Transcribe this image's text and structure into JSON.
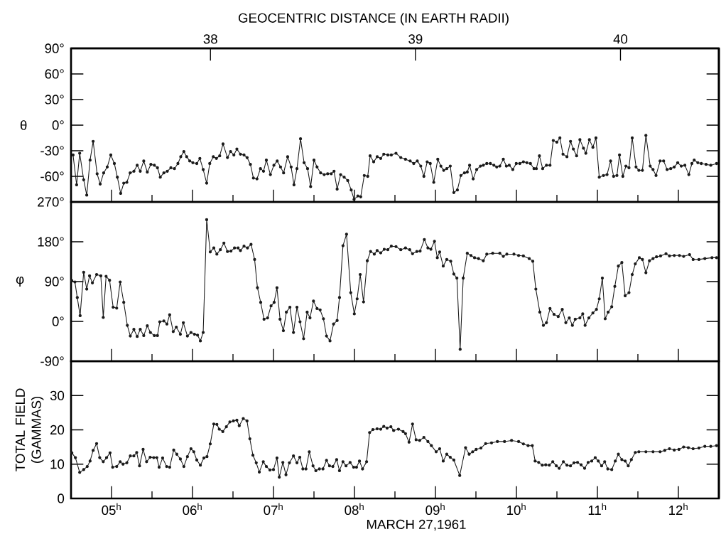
{
  "chart_data": [
    {
      "type": "line",
      "ylabel": "θ",
      "x2label": "GEOCENTRIC DISTANCE (IN EARTH RADII)",
      "xlim": [
        4.5,
        12.5
      ],
      "ylim": [
        -90,
        90
      ],
      "x2lim": [
        37.32,
        40.48
      ],
      "x2ticks": [
        38,
        39,
        40
      ],
      "tick_labels": "y",
      "marker": "circle",
      "line_style": "solid",
      "xticks": [
        {
          "value": 5,
          "label": null
        },
        {
          "value": 5.5,
          "label": null
        },
        {
          "value": 6,
          "label": null
        },
        {
          "value": 6.5,
          "label": null
        },
        {
          "value": 7,
          "label": null
        },
        {
          "value": 7.5,
          "label": null
        },
        {
          "value": 8,
          "label": null
        },
        {
          "value": 8.5,
          "label": null
        },
        {
          "value": 9,
          "label": null
        },
        {
          "value": 9.5,
          "label": null
        },
        {
          "value": 10,
          "label": null
        },
        {
          "value": 10.5,
          "label": null
        },
        {
          "value": 11,
          "label": null
        },
        {
          "value": 11.5,
          "label": null
        },
        {
          "value": 12,
          "label": null
        }
      ],
      "yticks": [
        {
          "value": 90,
          "label": "90°"
        },
        {
          "value": 60,
          "label": "60°"
        },
        {
          "value": 30,
          "label": "30°"
        },
        {
          "value": 0,
          "label": "0°"
        },
        {
          "value": -30,
          "label": "-30°"
        },
        {
          "value": -60,
          "label": "-60°"
        },
        {
          "value": -90,
          "label": null
        }
      ],
      "x": [
        4.525,
        4.569,
        4.607,
        4.656,
        4.694,
        4.735,
        4.773,
        4.822,
        4.86,
        4.903,
        4.947,
        4.991,
        5.035,
        5.072,
        5.113,
        5.151,
        5.189,
        5.23,
        5.277,
        5.317,
        5.355,
        5.398,
        5.442,
        5.486,
        5.529,
        5.567,
        5.602,
        5.646,
        5.689,
        5.733,
        5.777,
        5.82,
        5.855,
        5.893,
        5.928,
        5.966,
        6.004,
        6.053,
        6.091,
        6.132,
        6.175,
        6.213,
        6.257,
        6.295,
        6.336,
        6.377,
        6.432,
        6.47,
        6.511,
        6.548,
        6.592,
        6.636,
        6.674,
        6.715,
        6.752,
        6.796,
        6.839,
        6.877,
        6.912,
        6.962,
        7.005,
        7.046,
        7.087,
        7.125,
        7.175,
        7.218,
        7.253,
        7.29,
        7.334,
        7.378,
        7.421,
        7.459,
        7.5,
        7.538,
        7.582,
        7.626,
        7.669,
        7.713,
        7.748,
        7.786,
        7.829,
        7.873,
        7.917,
        7.96,
        7.995,
        8.042,
        8.077,
        8.121,
        8.164,
        8.193,
        8.237,
        8.281,
        8.324,
        8.362,
        8.412,
        8.455,
        8.513,
        8.572,
        8.63,
        8.688,
        8.732,
        8.776,
        8.819,
        8.857,
        8.898,
        8.936,
        8.979,
        9.029,
        9.067,
        9.102,
        9.14,
        9.183,
        9.227,
        9.271,
        9.314,
        9.358,
        9.393,
        9.422,
        9.466,
        9.509,
        9.556,
        9.591,
        9.634,
        9.678,
        9.722,
        9.757,
        9.795,
        9.838,
        9.876,
        9.911,
        9.955,
        9.998,
        10.042,
        10.086,
        10.129,
        10.173,
        10.217,
        10.246,
        10.284,
        10.324,
        10.371,
        10.415,
        10.455,
        10.499,
        10.537,
        10.575,
        10.624,
        10.668,
        10.703,
        10.743,
        10.784,
        10.828,
        10.857,
        10.901,
        10.944,
        10.982,
        11.023,
        11.075,
        11.119,
        11.163,
        11.2,
        11.241,
        11.273,
        11.314,
        11.352,
        11.39,
        11.43,
        11.477,
        11.512,
        11.556,
        11.599,
        11.652,
        11.687,
        11.724,
        11.774,
        11.818,
        11.861,
        11.905,
        11.949,
        11.992,
        12.036,
        12.08,
        12.129,
        12.167,
        12.196,
        12.24,
        12.283,
        12.342,
        12.4,
        12.472
      ],
      "series": [
        {
          "color": "#1a1a1a",
          "values": [
            -35,
            -70,
            -33,
            -64,
            -82,
            -41,
            -19,
            -57,
            -69,
            -56,
            -49,
            -35,
            -45,
            -61,
            -80,
            -68,
            -67,
            -56,
            -54,
            -47,
            -54,
            -42,
            -55,
            -46,
            -47,
            -50,
            -61,
            -56,
            -54,
            -50,
            -51,
            -45,
            -37,
            -31,
            -37,
            -42,
            -44,
            -45,
            -39,
            -52,
            -68,
            -45,
            -37,
            -39,
            -36,
            -22,
            -38,
            -31,
            -35,
            -28,
            -34,
            -35,
            -38,
            -46,
            -62,
            -63,
            -51,
            -54,
            -41,
            -58,
            -47,
            -42,
            -49,
            -56,
            -37,
            -49,
            -70,
            -51,
            -16,
            -44,
            -51,
            -72,
            -41,
            -49,
            -56,
            -58,
            -57,
            -57,
            -54,
            -75,
            -58,
            -61,
            -65,
            -76,
            -87,
            -83,
            -84,
            -59,
            -60,
            -36,
            -43,
            -37,
            -39,
            -34,
            -35,
            -35,
            -33,
            -38,
            -40,
            -42,
            -45,
            -42,
            -48,
            -60,
            -43,
            -45,
            -67,
            -40,
            -48,
            -53,
            -51,
            -48,
            -79,
            -76,
            -59,
            -56,
            -55,
            -47,
            -63,
            -52,
            -48,
            -47,
            -45,
            -45,
            -47,
            -49,
            -48,
            -40,
            -48,
            -47,
            -52,
            -45,
            -45,
            -43,
            -44,
            -45,
            -51,
            -51,
            -36,
            -51,
            -47,
            -47,
            -18,
            -20,
            -15,
            -34,
            -37,
            -19,
            -28,
            -36,
            -17,
            -27,
            -33,
            -17,
            -26,
            -15,
            -61,
            -59,
            -58,
            -42,
            -60,
            -59,
            -35,
            -60,
            -48,
            -50,
            -15,
            -49,
            -53,
            -53,
            -12,
            -48,
            -52,
            -59,
            -42,
            -42,
            -52,
            -51,
            -49,
            -44,
            -48,
            -47,
            -58,
            -45,
            -41,
            -44,
            -45,
            -46,
            -47,
            -45
          ]
        }
      ]
    },
    {
      "type": "line",
      "ylabel": "φ",
      "xlim": [
        4.5,
        12.5
      ],
      "ylim": [
        -90,
        270
      ],
      "tick_labels": "y",
      "marker": "circle",
      "line_style": "solid",
      "xticks": [
        {
          "value": 5,
          "label": null
        },
        {
          "value": 5.5,
          "label": null
        },
        {
          "value": 6,
          "label": null
        },
        {
          "value": 6.5,
          "label": null
        },
        {
          "value": 7,
          "label": null
        },
        {
          "value": 7.5,
          "label": null
        },
        {
          "value": 8,
          "label": null
        },
        {
          "value": 8.5,
          "label": null
        },
        {
          "value": 9,
          "label": null
        },
        {
          "value": 9.5,
          "label": null
        },
        {
          "value": 10,
          "label": null
        },
        {
          "value": 10.5,
          "label": null
        },
        {
          "value": 11,
          "label": null
        },
        {
          "value": 11.5,
          "label": null
        },
        {
          "value": 12,
          "label": null
        }
      ],
      "yticks": [
        {
          "value": 270,
          "label": "270°"
        },
        {
          "value": 180,
          "label": "180°"
        },
        {
          "value": 90,
          "label": "90°"
        },
        {
          "value": 0,
          "label": "0°"
        },
        {
          "value": -90,
          "label": "-90°"
        }
      ],
      "x": [
        4.51,
        4.548,
        4.577,
        4.612,
        4.656,
        4.694,
        4.729,
        4.764,
        4.816,
        4.868,
        4.898,
        4.933,
        4.976,
        5.02,
        5.064,
        5.107,
        5.151,
        5.195,
        5.232,
        5.276,
        5.317,
        5.355,
        5.398,
        5.442,
        5.48,
        5.529,
        5.567,
        5.596,
        5.646,
        5.684,
        5.718,
        5.762,
        5.8,
        5.85,
        5.887,
        5.937,
        5.981,
        6.024,
        6.062,
        6.097,
        6.132,
        6.175,
        6.219,
        6.263,
        6.301,
        6.344,
        6.388,
        6.432,
        6.475,
        6.519,
        6.563,
        6.592,
        6.636,
        6.679,
        6.723,
        6.767,
        6.802,
        6.842,
        6.883,
        6.927,
        6.97,
        7.008,
        7.043,
        7.081,
        7.122,
        7.159,
        7.203,
        7.247,
        7.29,
        7.328,
        7.372,
        7.416,
        7.451,
        7.494,
        7.538,
        7.576,
        7.617,
        7.655,
        7.698,
        7.742,
        7.786,
        7.815,
        7.858,
        7.902,
        7.954,
        7.998,
        8.033,
        8.071,
        8.112,
        8.158,
        8.199,
        8.245,
        8.28,
        8.324,
        8.368,
        8.412,
        8.455,
        8.513,
        8.572,
        8.63,
        8.682,
        8.717,
        8.77,
        8.811,
        8.863,
        8.907,
        8.944,
        8.988,
        9.023,
        9.052,
        9.096,
        9.14,
        9.189,
        9.227,
        9.265,
        9.305,
        9.343,
        9.393,
        9.439,
        9.483,
        9.532,
        9.591,
        9.634,
        9.707,
        9.795,
        9.838,
        9.882,
        9.969,
        10.027,
        10.086,
        10.158,
        10.202,
        10.24,
        10.289,
        10.333,
        10.371,
        10.415,
        10.464,
        10.516,
        10.566,
        10.61,
        10.653,
        10.691,
        10.726,
        10.784,
        10.819,
        10.848,
        10.895,
        10.944,
        10.988,
        11.023,
        11.061,
        11.096,
        11.133,
        11.177,
        11.215,
        11.259,
        11.302,
        11.343,
        11.39,
        11.43,
        11.468,
        11.518,
        11.556,
        11.599,
        11.643,
        11.687,
        11.73,
        11.78,
        11.847,
        11.89,
        11.949,
        12.013,
        12.065,
        12.138,
        12.182,
        12.254,
        12.327,
        12.415,
        12.472
      ],
      "series": [
        {
          "color": "#1a1a1a",
          "values": [
            92,
            89,
            54,
            13,
            111,
            73,
            103,
            87,
            106,
            103,
            9,
            102,
            93,
            32,
            30,
            89,
            43,
            -9,
            -33,
            -18,
            -34,
            -18,
            -32,
            -10,
            -25,
            -32,
            -32,
            -1,
            1,
            -6,
            15,
            -23,
            -13,
            -29,
            -3,
            -33,
            -25,
            -29,
            -31,
            -44,
            -25,
            230,
            157,
            166,
            152,
            162,
            177,
            158,
            159,
            166,
            166,
            160,
            170,
            166,
            174,
            140,
            76,
            43,
            5,
            8,
            35,
            43,
            76,
            5,
            -21,
            21,
            32,
            -25,
            32,
            -1,
            -39,
            21,
            8,
            46,
            29,
            26,
            6,
            -33,
            -44,
            -6,
            2,
            54,
            171,
            197,
            65,
            17,
            51,
            106,
            44,
            137,
            158,
            152,
            160,
            155,
            163,
            162,
            170,
            169,
            162,
            166,
            162,
            153,
            158,
            159,
            185,
            166,
            163,
            181,
            144,
            157,
            125,
            140,
            136,
            107,
            98,
            -63,
            98,
            154,
            149,
            144,
            142,
            137,
            152,
            154,
            154,
            147,
            152,
            152,
            149,
            148,
            142,
            136,
            73,
            21,
            -9,
            -3,
            29,
            16,
            11,
            27,
            -3,
            8,
            -9,
            5,
            8,
            17,
            -9,
            8,
            19,
            27,
            51,
            98,
            6,
            21,
            33,
            79,
            125,
            133,
            58,
            65,
            106,
            130,
            144,
            140,
            110,
            137,
            142,
            146,
            148,
            153,
            148,
            149,
            149,
            147,
            151,
            140,
            140,
            142,
            144,
            144
          ]
        }
      ]
    },
    {
      "type": "line",
      "ylabel": "TOTAL FIELD (GAMMAS)",
      "xlabel": "MARCH 27,1961",
      "xlim": [
        4.5,
        12.5
      ],
      "ylim": [
        0,
        40
      ],
      "marker": "circle",
      "line_style": "solid",
      "xticks": [
        {
          "value": 5,
          "label": "05$^{h}$"
        },
        {
          "value": 5.5,
          "label": null
        },
        {
          "value": 6,
          "label": "06$^{h}$"
        },
        {
          "value": 6.5,
          "label": null
        },
        {
          "value": 7,
          "label": "07$^{h}$"
        },
        {
          "value": 7.5,
          "label": null
        },
        {
          "value": 8,
          "label": "08$^{h}$"
        },
        {
          "value": 8.5,
          "label": null
        },
        {
          "value": 9,
          "label": "09$^{h}$"
        },
        {
          "value": 9.5,
          "label": null
        },
        {
          "value": 10,
          "label": "10$^{h}$"
        },
        {
          "value": 10.5,
          "label": null
        },
        {
          "value": 11,
          "label": "11$^{h}$"
        },
        {
          "value": 11.5,
          "label": null
        },
        {
          "value": 12,
          "label": "12$^{h}$"
        }
      ],
      "yticks": [
        0,
        10,
        20,
        30,
        {
          "value": 40,
          "label": null
        }
      ],
      "x": [
        4.51,
        4.554,
        4.607,
        4.656,
        4.7,
        4.735,
        4.773,
        4.816,
        4.854,
        4.898,
        4.939,
        4.982,
        5.014,
        5.064,
        5.107,
        5.142,
        5.189,
        5.232,
        5.276,
        5.311,
        5.346,
        5.39,
        5.433,
        5.477,
        5.521,
        5.559,
        5.588,
        5.631,
        5.681,
        5.718,
        5.768,
        5.806,
        5.85,
        5.893,
        5.937,
        5.981,
        6.016,
        6.053,
        6.097,
        6.141,
        6.179,
        6.219,
        6.263,
        6.301,
        6.33,
        6.374,
        6.418,
        6.461,
        6.505,
        6.548,
        6.577,
        6.627,
        6.673,
        6.708,
        6.746,
        6.787,
        6.825,
        6.874,
        6.912,
        6.956,
        7.0,
        7.043,
        7.072,
        7.116,
        7.154,
        7.197,
        7.247,
        7.29,
        7.325,
        7.363,
        7.401,
        7.442,
        7.488,
        7.523,
        7.567,
        7.611,
        7.655,
        7.692,
        7.733,
        7.78,
        7.815,
        7.858,
        7.896,
        7.946,
        7.99,
        8.025,
        8.062,
        8.1,
        8.15,
        8.187,
        8.228,
        8.28,
        8.324,
        8.362,
        8.403,
        8.45,
        8.484,
        8.543,
        8.601,
        8.63,
        8.674,
        8.717,
        8.761,
        8.805,
        8.857,
        8.907,
        8.95,
        9.009,
        9.052,
        9.096,
        9.14,
        9.183,
        9.227,
        9.3,
        9.372,
        9.416,
        9.46,
        9.503,
        9.562,
        9.62,
        9.693,
        9.765,
        9.853,
        9.94,
        10.027,
        10.086,
        10.144,
        10.196,
        10.231,
        10.275,
        10.319,
        10.362,
        10.406,
        10.449,
        10.493,
        10.528,
        10.58,
        10.624,
        10.668,
        10.711,
        10.755,
        10.799,
        10.842,
        10.886,
        10.93,
        10.973,
        11.011,
        11.052,
        11.09,
        11.128,
        11.177,
        11.221,
        11.259,
        11.302,
        11.343,
        11.381,
        11.419,
        11.468,
        11.512,
        11.599,
        11.687,
        11.774,
        11.832,
        11.89,
        11.949,
        12.007,
        12.065,
        12.123,
        12.182,
        12.254,
        12.327,
        12.4,
        12.472
      ],
      "series": [
        {
          "color": "#1a1a1a",
          "values": [
            13.3,
            11.9,
            7.6,
            8.4,
            9.3,
            10.9,
            14.0,
            16.0,
            11.9,
            10.7,
            11.9,
            13.3,
            9.1,
            9.3,
            10.7,
            10.0,
            10.4,
            12.4,
            12.4,
            13.4,
            9.5,
            14.3,
            10.7,
            12.0,
            11.9,
            11.9,
            9.1,
            11.8,
            9.3,
            9.1,
            14.1,
            12.9,
            11.5,
            9.3,
            12.2,
            14.5,
            13.6,
            11.2,
            9.7,
            11.8,
            12.2,
            15.9,
            21.7,
            21.6,
            20.2,
            19.5,
            20.9,
            22.3,
            22.6,
            22.8,
            21.2,
            23.3,
            22.6,
            17.4,
            12.6,
            10.4,
            7.7,
            10.7,
            9.3,
            8.3,
            8.4,
            11.8,
            6.2,
            10.5,
            6.9,
            10.4,
            12.4,
            10.4,
            12.0,
            8.6,
            8.6,
            13.6,
            9.5,
            8.1,
            8.6,
            8.6,
            11.1,
            9.5,
            9.3,
            11.3,
            8.1,
            10.7,
            9.5,
            10.5,
            9.1,
            9.1,
            10.9,
            8.6,
            10.7,
            19.2,
            20.1,
            20.3,
            20.2,
            21.0,
            20.5,
            20.9,
            19.8,
            20.2,
            19.5,
            18.9,
            16.4,
            21.7,
            17.1,
            16.9,
            17.8,
            16.6,
            15.4,
            13.6,
            14.5,
            10.9,
            12.9,
            12.0,
            11.2,
            6.7,
            14.8,
            12.9,
            13.6,
            14.3,
            14.7,
            16.0,
            16.2,
            16.6,
            16.6,
            16.9,
            16.6,
            15.9,
            15.4,
            15.4,
            10.9,
            10.5,
            9.7,
            9.8,
            9.7,
            10.7,
            9.5,
            8.8,
            10.7,
            9.7,
            9.5,
            10.4,
            10.5,
            9.8,
            8.8,
            10.5,
            10.9,
            11.9,
            10.9,
            9.5,
            10.7,
            8.6,
            8.4,
            10.9,
            12.9,
            11.3,
            10.9,
            9.5,
            11.3,
            13.4,
            13.6,
            13.6,
            13.6,
            13.6,
            14.0,
            14.5,
            14.1,
            14.3,
            15.0,
            14.8,
            14.5,
            14.7,
            15.2,
            15.2,
            15.4
          ]
        }
      ]
    }
  ]
}
